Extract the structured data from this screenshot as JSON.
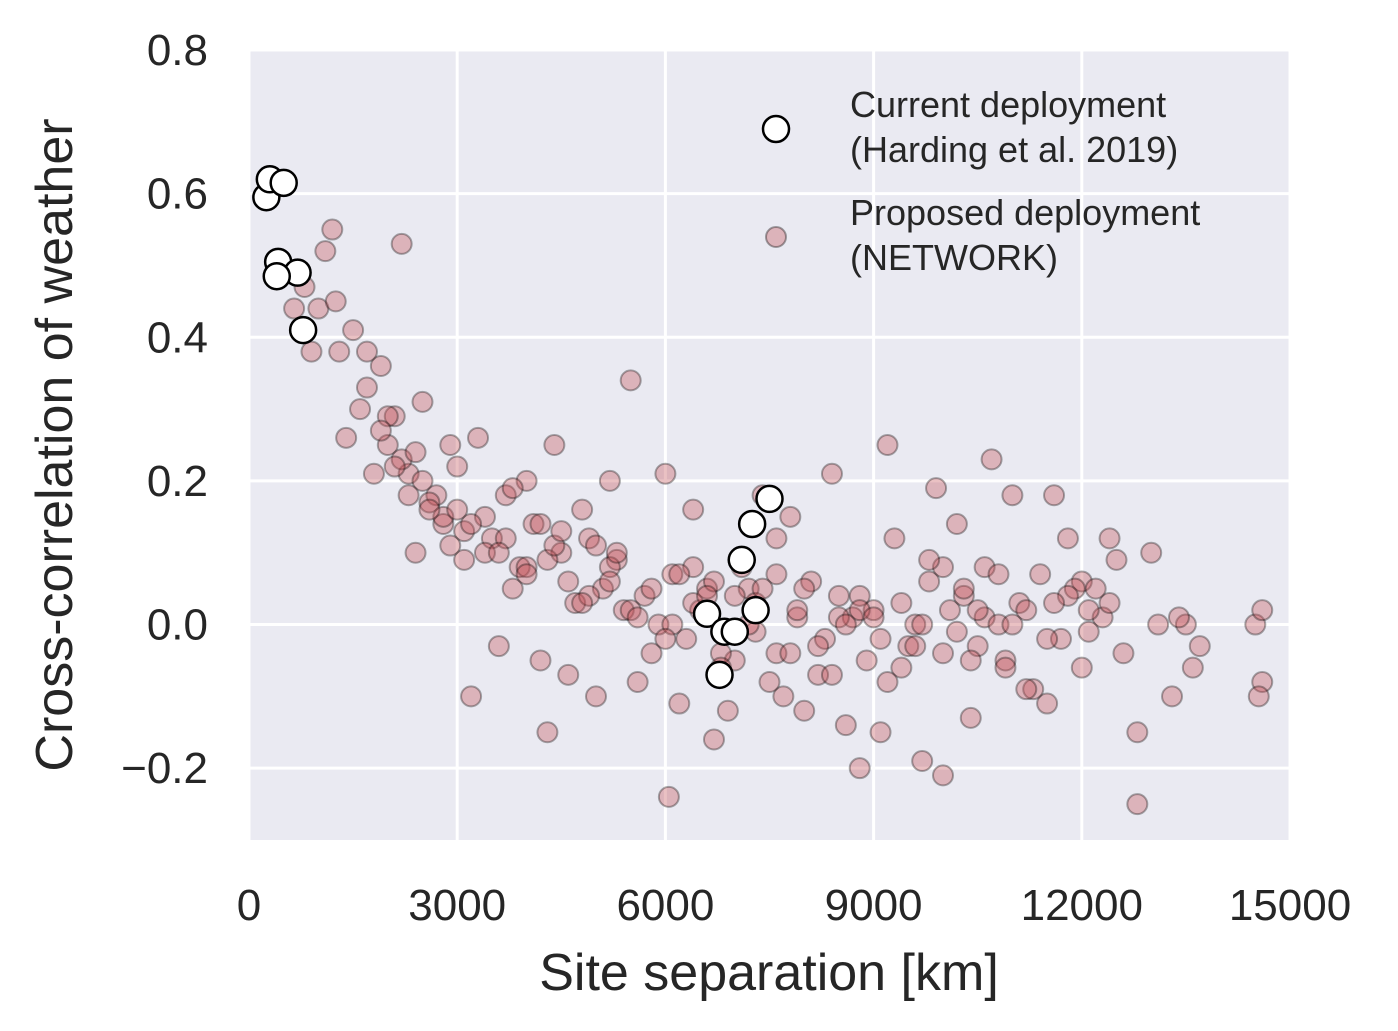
{
  "chart_data": {
    "type": "scatter",
    "xlabel": "Site separation [km]",
    "ylabel": "Cross-correlation of weather",
    "xlim": [
      0,
      15000
    ],
    "ylim": [
      -0.3,
      0.8
    ],
    "x_ticks": [
      0,
      3000,
      6000,
      9000,
      12000,
      15000
    ],
    "x_tick_labels": [
      "0",
      "3000",
      "6000",
      "9000",
      "12000",
      "15000"
    ],
    "y_ticks": [
      -0.2,
      0.0,
      0.2,
      0.4,
      0.6,
      0.8
    ],
    "y_tick_labels": [
      "−0.2",
      "0.0",
      "0.2",
      "0.4",
      "0.6",
      "0.8"
    ],
    "grid": true,
    "legend_position": "top-right",
    "colors": {
      "plot_background": "#eaeaf2",
      "grid": "#ffffff",
      "proposed_fill": "#c44e52",
      "current_fill": "#ffffff",
      "marker_edge": "#000000"
    },
    "series": [
      {
        "name": "Current deployment\n(Harding et al. 2019)",
        "legend_lines": [
          "Current deployment",
          "(Harding et al. 2019)"
        ],
        "marker": "open-circle",
        "x": [
          250,
          300,
          500,
          420,
          700,
          400,
          780,
          6600,
          6850,
          7000,
          6780,
          7100,
          7300,
          7250,
          7500
        ],
        "y": [
          0.595,
          0.62,
          0.615,
          0.505,
          0.49,
          0.485,
          0.41,
          0.015,
          -0.01,
          -0.01,
          -0.07,
          0.09,
          0.02,
          0.14,
          0.175
        ]
      },
      {
        "name": "Proposed deployment\n(NETWORK)",
        "legend_lines": [
          "Proposed deployment",
          "(NETWORK)"
        ],
        "marker": "translucent-circle",
        "x": [
          650,
          800,
          900,
          1000,
          1100,
          1200,
          1250,
          1300,
          2200,
          5500,
          9200,
          10700,
          12800,
          6050,
          4300,
          3200,
          14500,
          14600,
          14600,
          14550,
          13500,
          13600,
          13300,
          13000,
          12800,
          12400,
          12500,
          12300,
          12000,
          11800,
          11600,
          11500,
          11400,
          11300,
          11000,
          10900,
          10600,
          10400,
          10200,
          10000,
          9900,
          9700,
          9500,
          9300,
          9100,
          8800,
          8600,
          8400,
          8200,
          8000,
          7800,
          7700,
          7600,
          7500,
          7400,
          7200,
          7000,
          6900,
          6700,
          6500,
          6400,
          6200,
          6000,
          5800,
          5600,
          5400,
          5200,
          5000,
          4800,
          4600,
          4400,
          4200,
          4000,
          3800,
          3600,
          3400,
          3300,
          3100,
          2900,
          2700,
          2500,
          2300,
          2100,
          1900,
          1700,
          1500,
          1400,
          1600,
          1800,
          2000,
          2400,
          2600,
          2800,
          3000,
          3500,
          3700,
          3900,
          4100,
          4500,
          4700,
          4900,
          5100,
          5300,
          5700,
          5900,
          6100,
          6300,
          6600,
          6800,
          7100,
          7300,
          7900,
          8100,
          8300,
          8500,
          8700,
          8900,
          9000,
          9400,
          9600,
          9800,
          10100,
          10300,
          10500,
          10800,
          11100,
          11700,
          11900,
          12100,
          12600,
          13100,
          13400,
          13700,
          2000,
          2200,
          2500,
          2800,
          3100,
          3400,
          3700,
          4000,
          4300,
          4600,
          4900,
          5200,
          5500,
          5800,
          6100,
          6400,
          6700,
          7000,
          7300,
          7600,
          7900,
          8200,
          8500,
          8800,
          9100,
          9400,
          9700,
          10000,
          10300,
          10600,
          10900,
          11200,
          11500,
          11800,
          12100,
          12400,
          1700,
          1900,
          2100,
          2300,
          2600,
          2900,
          3200,
          3600,
          4000,
          4400,
          4800,
          5200,
          5600,
          6000,
          6400,
          6800,
          7200,
          7600,
          8000,
          8400,
          8800,
          9200,
          9600,
          10000,
          10400,
          10800,
          11200,
          11600,
          12000,
          3000,
          4200,
          5000,
          6200,
          7400,
          8600,
          9800,
          10200,
          11000,
          12200,
          2400,
          3800,
          4500,
          5300,
          6600,
          7800,
          9000,
          10500
        ],
        "y": [
          0.44,
          0.47,
          0.38,
          0.44,
          0.52,
          0.55,
          0.45,
          0.38,
          0.53,
          0.34,
          0.25,
          0.23,
          -0.25,
          -0.24,
          -0.15,
          -0.1,
          0.0,
          0.02,
          -0.08,
          -0.1,
          0.0,
          -0.06,
          -0.1,
          0.1,
          -0.15,
          0.12,
          0.09,
          0.01,
          0.06,
          0.12,
          0.18,
          -0.11,
          0.07,
          -0.09,
          0.18,
          -0.05,
          0.08,
          -0.13,
          0.14,
          -0.21,
          0.19,
          -0.19,
          -0.03,
          0.12,
          -0.15,
          -0.2,
          -0.14,
          0.21,
          -0.07,
          -0.12,
          0.15,
          -0.1,
          0.12,
          -0.08,
          0.18,
          0.05,
          -0.05,
          -0.12,
          -0.16,
          0.02,
          0.16,
          -0.11,
          0.21,
          -0.04,
          -0.08,
          0.02,
          0.2,
          -0.1,
          0.16,
          -0.07,
          0.25,
          -0.05,
          0.2,
          0.05,
          -0.03,
          0.15,
          0.26,
          0.09,
          0.25,
          0.18,
          0.31,
          0.21,
          0.29,
          0.36,
          0.38,
          0.41,
          0.26,
          0.3,
          0.21,
          0.25,
          0.1,
          0.17,
          0.14,
          0.22,
          0.12,
          0.18,
          0.08,
          0.14,
          0.1,
          0.03,
          0.12,
          0.05,
          0.09,
          0.04,
          0.0,
          0.07,
          -0.02,
          0.05,
          -0.04,
          0.08,
          0.03,
          0.01,
          0.06,
          -0.02,
          0.04,
          0.01,
          -0.05,
          0.02,
          -0.06,
          0.0,
          0.06,
          0.02,
          0.04,
          -0.03,
          0.07,
          0.03,
          -0.02,
          0.05,
          0.02,
          -0.04,
          0.0,
          0.01,
          -0.03,
          0.29,
          0.23,
          0.2,
          0.15,
          0.13,
          0.1,
          0.12,
          0.08,
          0.09,
          0.06,
          0.04,
          0.08,
          0.02,
          0.05,
          0.0,
          0.03,
          0.06,
          0.04,
          -0.01,
          0.07,
          0.02,
          -0.03,
          0.01,
          0.04,
          -0.02,
          0.03,
          0.0,
          -0.04,
          0.05,
          0.01,
          -0.06,
          0.02,
          -0.02,
          0.04,
          -0.01,
          0.03,
          0.33,
          0.27,
          0.22,
          0.18,
          0.16,
          0.11,
          0.14,
          0.1,
          0.07,
          0.11,
          0.03,
          0.06,
          0.01,
          -0.02,
          0.08,
          -0.06,
          0.0,
          -0.04,
          0.05,
          -0.07,
          0.02,
          -0.08,
          -0.03,
          0.08,
          -0.05,
          0.0,
          -0.09,
          0.03,
          -0.06,
          0.16,
          0.14,
          0.11,
          0.07,
          0.05,
          0.0,
          0.09,
          -0.01,
          0.0,
          0.05,
          0.24,
          0.19,
          0.13,
          0.1,
          0.04,
          -0.04,
          0.01,
          0.02
        ]
      }
    ]
  }
}
